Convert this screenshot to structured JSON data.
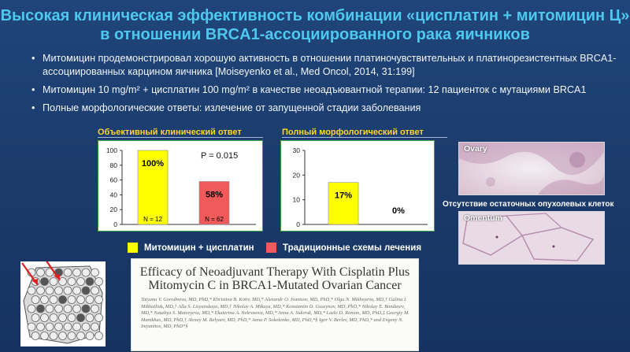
{
  "title_line1": "Высокая клиническая эффективность комбинации «цисплатин + митомицин Ц»",
  "title_line2": "в отношении BRCA1-ассоциированного рака яичников",
  "bullets": [
    "Митомицин продемонстрировал хорошую активность в отношении платиночувствительных и платинорезистентных BRCA1-ассоциированных карцином яичника [Moiseyenko et al., Med Oncol, 2014, 31:199]",
    "Митомицин 10 mg/m² + цисплатин 100 mg/m² в качестве неоадъювантной терапии: 12 пациенток с мутациями BRCA1",
    "Полные морфологические ответы: излечение от запущенной стадии заболевания"
  ],
  "chart1_title": "Объективный клинический ответ",
  "chart2_title": "Полный морфологический ответ",
  "chart1_pvalue": "P = 0.015",
  "legend": {
    "item1": "Митомицин + цисплатин",
    "item2": "Традиционные схемы лечения"
  },
  "colors": {
    "yellow": "#ffff00",
    "red": "#f05a5a",
    "accent": "#4ec8ee",
    "chart_title": "#ffd42a",
    "frame": "#3fa34d"
  },
  "photos": {
    "top_label": "Ovary",
    "bottom_label": "Omentum",
    "caption": "Отсутствие остаточных опухолевых клеток"
  },
  "paper": {
    "title_line1": "Efficacy of Neoadjuvant Therapy With Cisplatin Plus",
    "title_line2": "Mitomycin C in BRCA1-Mutated Ovarian Cancer",
    "authors": "Tatyana V. Gorodnova, MD, PhD,* Khristina B. Kotiv, MD,* Alexandr O. Ivantsov, MD, PhD,* Olga N. Mikheyeva, MD,† Galina I. Mikhailiuk, MD,† Alla S. Lisyanskaya, MD,† Nikolay A. Mikaya, MD,* Konstantin D. Guseynov, MD, PhD,* Nikolay E. Bondarev, MD,* Nataliya S. Matveyeva, MD,* Ekaterina A. Nekrasova, MD,* Anna A. Sidoruk, MD,* Lazlo D. Roman, MD, PhD,‡ Georgiy M. Manikhas, MD, PhD,† Alexey M. Belyaev, MD, PhD,* Anna P. Sokolenko, MD, PhD,*§ Igor V. Berlev, MD, PhD,* and Evgeny N. Imyanitov, MD, PhD*§"
  },
  "chart_data": [
    {
      "type": "bar",
      "title": "Объективный клинический ответ",
      "categories": [
        "Митомицин + цисплатин",
        "Традиционные схемы лечения"
      ],
      "values": [
        100,
        58
      ],
      "data_labels": [
        "100%",
        "58%"
      ],
      "n_labels": [
        "N = 12",
        "N = 62"
      ],
      "annotation": "P = 0.015",
      "yticks": [
        0,
        20,
        40,
        60,
        80,
        100
      ],
      "ylim": [
        0,
        100
      ]
    },
    {
      "type": "bar",
      "title": "Полный морфологический ответ",
      "categories": [
        "Митомицин + цисплатин",
        "Традиционные схемы лечения"
      ],
      "values": [
        17,
        0
      ],
      "data_labels": [
        "17%",
        "0%"
      ],
      "yticks": [
        0,
        10,
        20,
        30
      ],
      "ylim": [
        0,
        30
      ]
    }
  ]
}
